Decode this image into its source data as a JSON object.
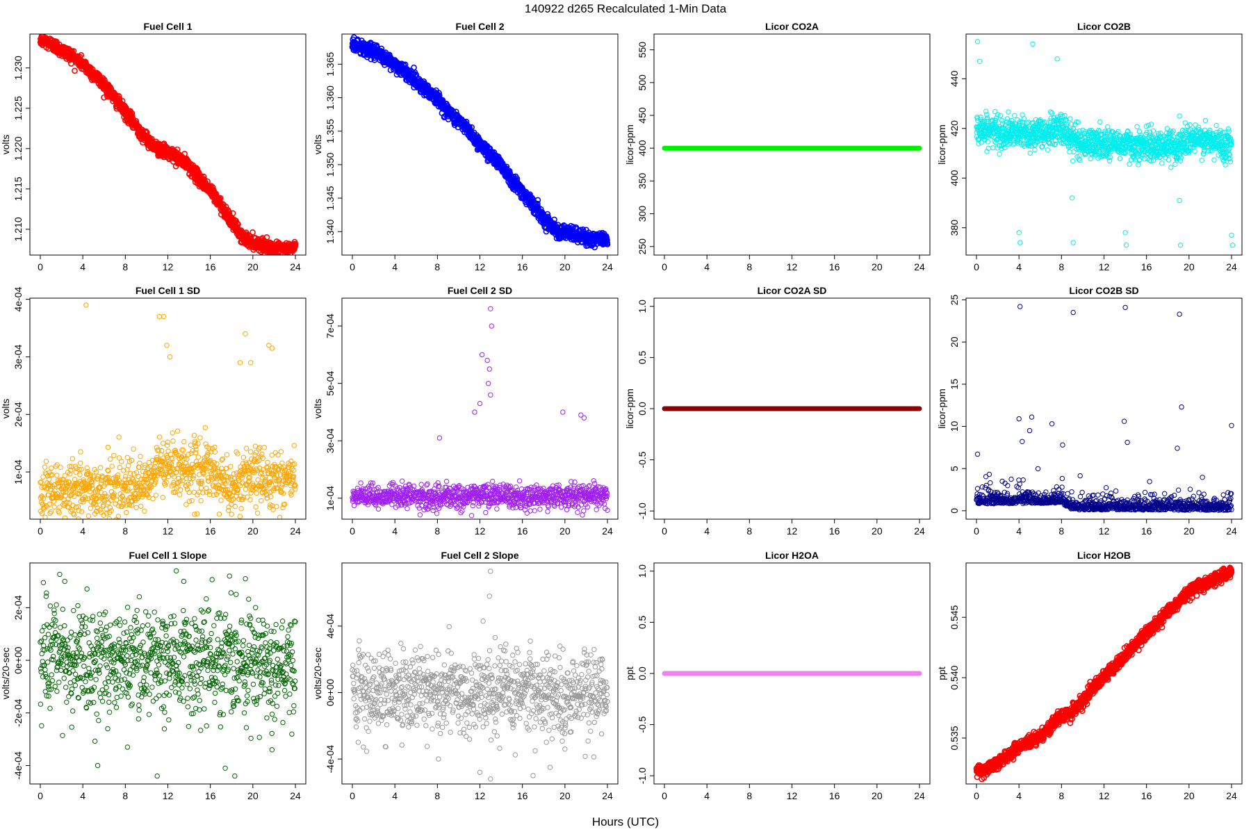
{
  "figure": {
    "super_title": "140922    d265    Recalculated 1-Min Data",
    "x_axis_label": "Hours (UTC)"
  },
  "chart_data": [
    {
      "id": "p1",
      "type": "scatter",
      "title": "Fuel Cell 1",
      "ylabel": "volts",
      "color": "#ff0000",
      "xlim": [
        0,
        24
      ],
      "xticks": [
        0,
        4,
        8,
        12,
        16,
        20,
        24
      ],
      "ylim": [
        1.2068,
        1.2342
      ],
      "yticks": [
        1.21,
        1.215,
        1.22,
        1.225,
        1.23
      ],
      "ytick_labels": [
        "1.210",
        "1.215",
        "1.220",
        "1.225",
        "1.230"
      ],
      "trend_x": [
        0,
        1,
        2,
        3,
        4,
        5,
        6,
        7,
        8,
        9,
        10,
        11,
        12,
        13,
        14,
        15,
        16,
        17,
        18,
        19,
        20,
        21,
        22,
        23,
        24
      ],
      "trend_y": [
        1.2335,
        1.233,
        1.2322,
        1.2315,
        1.2305,
        1.2292,
        1.228,
        1.2262,
        1.2245,
        1.2228,
        1.2212,
        1.22,
        1.2195,
        1.2188,
        1.2178,
        1.2162,
        1.2148,
        1.213,
        1.211,
        1.209,
        1.2084,
        1.208,
        1.2075,
        1.2075,
        1.2078
      ],
      "noise": 0.0004,
      "density": 1440,
      "marker": "thick"
    },
    {
      "id": "p2",
      "type": "scatter",
      "title": "Fuel Cell 2",
      "ylabel": "volts",
      "color": "#0000ff",
      "xlim": [
        0,
        24
      ],
      "xticks": [
        0,
        4,
        8,
        12,
        16,
        20,
        24
      ],
      "ylim": [
        1.3365,
        1.3695
      ],
      "yticks": [
        1.34,
        1.345,
        1.35,
        1.355,
        1.36,
        1.365
      ],
      "ytick_labels": [
        "1.340",
        "1.345",
        "1.350",
        "1.355",
        "1.360",
        "1.365"
      ],
      "trend_x": [
        0,
        1,
        2,
        3,
        4,
        5,
        6,
        7,
        8,
        9,
        10,
        11,
        12,
        13,
        14,
        15,
        16,
        17,
        18,
        19,
        20,
        21,
        22,
        23,
        24
      ],
      "trend_y": [
        1.368,
        1.3675,
        1.3668,
        1.366,
        1.365,
        1.3638,
        1.3625,
        1.3612,
        1.3598,
        1.358,
        1.3565,
        1.355,
        1.353,
        1.3515,
        1.35,
        1.3478,
        1.346,
        1.344,
        1.342,
        1.3405,
        1.3398,
        1.3395,
        1.339,
        1.3388,
        1.339
      ],
      "noise": 0.0005,
      "density": 1440,
      "marker": "thick"
    },
    {
      "id": "p3",
      "type": "scatter",
      "title": "Licor CO2A",
      "ylabel": "licor-ppm",
      "color": "#00ee00",
      "xlim": [
        0,
        24
      ],
      "xticks": [
        0,
        4,
        8,
        12,
        16,
        20,
        24
      ],
      "ylim": [
        237,
        574
      ],
      "yticks": [
        250,
        300,
        350,
        400,
        450,
        500,
        550
      ],
      "ytick_labels": [
        "250",
        "300",
        "350",
        "400",
        "450",
        "500",
        "550"
      ],
      "constant": 400,
      "marker": "line"
    },
    {
      "id": "p4",
      "type": "scatter",
      "title": "Licor CO2B",
      "ylabel": "licor-ppm",
      "color": "#00eeee",
      "xlim": [
        0,
        24
      ],
      "xticks": [
        0,
        4,
        8,
        12,
        16,
        20,
        24
      ],
      "ylim": [
        369,
        458
      ],
      "yticks": [
        380,
        400,
        420,
        440
      ],
      "ytick_labels": [
        "380",
        "400",
        "420",
        "440"
      ],
      "trend_x": [
        0,
        3,
        6,
        8,
        9,
        10,
        13,
        16,
        19,
        20,
        24
      ],
      "trend_y": [
        420,
        418,
        418,
        420,
        416,
        414,
        414,
        413,
        413,
        416,
        413
      ],
      "noise": 3,
      "density": 1440,
      "marker": "ring",
      "outliers": [
        [
          0.1,
          455
        ],
        [
          0.3,
          447
        ],
        [
          4,
          378
        ],
        [
          4.1,
          374
        ],
        [
          5.3,
          454
        ],
        [
          9,
          392
        ],
        [
          9.1,
          374
        ],
        [
          14,
          378
        ],
        [
          14.1,
          373
        ],
        [
          19.1,
          391
        ],
        [
          19.2,
          373
        ],
        [
          24,
          377
        ],
        [
          24.1,
          373
        ],
        [
          7.6,
          448
        ],
        [
          19.2,
          407
        ],
        [
          19.1,
          425
        ]
      ]
    },
    {
      "id": "p5",
      "type": "scatter",
      "title": "Fuel Cell 1 SD",
      "ylabel": "volts",
      "color": "#ffa500",
      "xlim": [
        0,
        24
      ],
      "xticks": [
        0,
        4,
        8,
        12,
        16,
        20,
        24
      ],
      "ylim": [
        1.8e-05,
        0.000402
      ],
      "yticks": [
        0.0001,
        0.0002,
        0.0003,
        0.0004
      ],
      "ytick_labels": [
        "1e-04",
        "2e-04",
        "3e-04",
        "4e-04"
      ],
      "trend_x": [
        0,
        4,
        8,
        10,
        11,
        12,
        16,
        18,
        19,
        20,
        24
      ],
      "trend_y": [
        7e-05,
        7e-05,
        7e-05,
        7e-05,
        0.00011,
        0.00011,
        0.0001,
        7e-05,
        9e-05,
        9e-05,
        9e-05
      ],
      "noise": 2.5e-05,
      "density": 1000,
      "marker": "ring",
      "outliers": [
        [
          4.3,
          0.00039
        ],
        [
          11.2,
          0.00037
        ],
        [
          11.6,
          0.00037
        ],
        [
          11.9,
          0.00032
        ],
        [
          19.3,
          0.00034
        ],
        [
          21.5,
          0.00032
        ],
        [
          21.8,
          0.000315
        ],
        [
          12.2,
          0.0003
        ],
        [
          18.8,
          0.00029
        ],
        [
          19.8,
          0.00029
        ]
      ]
    },
    {
      "id": "p6",
      "type": "scatter",
      "title": "Fuel Cell 2 SD",
      "ylabel": "volts",
      "color": "#a020f0",
      "xlim": [
        0,
        24
      ],
      "xticks": [
        0,
        4,
        8,
        12,
        16,
        20,
        24
      ],
      "ylim": [
        2.7e-05,
        0.000797
      ],
      "yticks": [
        0.0001,
        0.0003,
        0.0005,
        0.0007
      ],
      "ytick_labels": [
        "1e-04",
        "3e-04",
        "5e-04",
        "7e-04"
      ],
      "trend_x": [
        0,
        4,
        8,
        12,
        13,
        16,
        20,
        24
      ],
      "trend_y": [
        0.0001,
        0.00011,
        0.0001,
        0.00011,
        0.00011,
        0.0001,
        0.00011,
        0.00011
      ],
      "noise": 2e-05,
      "density": 1000,
      "marker": "ring",
      "outliers": [
        [
          13,
          0.00076
        ],
        [
          13.1,
          0.0007
        ],
        [
          12.2,
          0.0006
        ],
        [
          12.7,
          0.00058
        ],
        [
          12.9,
          0.00055
        ],
        [
          12.8,
          0.0005
        ],
        [
          13,
          0.00046
        ],
        [
          11.5,
          0.0004
        ],
        [
          12,
          0.00043
        ],
        [
          21.5,
          0.00039
        ],
        [
          21.8,
          0.00038
        ],
        [
          19.8,
          0.0004
        ],
        [
          8.2,
          0.00031
        ]
      ]
    },
    {
      "id": "p7",
      "type": "scatter",
      "title": "Licor CO2A SD",
      "ylabel": "licor-ppm",
      "color": "#8b0000",
      "xlim": [
        0,
        24
      ],
      "xticks": [
        0,
        4,
        8,
        12,
        16,
        20,
        24
      ],
      "ylim": [
        -1.08,
        1.08
      ],
      "yticks": [
        -1.0,
        -0.5,
        0.0,
        0.5,
        1.0
      ],
      "ytick_labels": [
        "-1.0",
        "-0.5",
        "0.0",
        "0.5",
        "1.0"
      ],
      "constant": 0,
      "marker": "line"
    },
    {
      "id": "p8",
      "type": "scatter",
      "title": "Licor CO2B SD",
      "ylabel": "licor-ppm",
      "color": "#00008b",
      "xlim": [
        0,
        24
      ],
      "xticks": [
        0,
        4,
        8,
        12,
        16,
        20,
        24
      ],
      "ylim": [
        -1,
        25.2
      ],
      "yticks": [
        0,
        5,
        10,
        15,
        20,
        25
      ],
      "ytick_labels": [
        "0",
        "5",
        "10",
        "15",
        "20",
        "25"
      ],
      "trend_x": [
        0,
        8,
        9,
        24
      ],
      "trend_y": [
        0.8,
        0.9,
        0.1,
        0.05
      ],
      "noise": 0.5,
      "density": 1000,
      "marker": "ring",
      "nonneg": true,
      "outliers": [
        [
          4.1,
          24.2
        ],
        [
          14,
          24.1
        ],
        [
          9.1,
          23.5
        ],
        [
          19.1,
          23.3
        ],
        [
          19.3,
          12.3
        ],
        [
          4,
          10.9
        ],
        [
          5.2,
          11.1
        ],
        [
          13.9,
          10.6
        ],
        [
          24,
          10.1
        ],
        [
          7.1,
          10.3
        ],
        [
          5,
          9.5
        ],
        [
          4.3,
          8.2
        ],
        [
          14.2,
          8.1
        ],
        [
          18.9,
          7.4
        ],
        [
          0.1,
          6.7
        ],
        [
          8.1,
          7.8
        ]
      ]
    },
    {
      "id": "p9",
      "type": "scatter",
      "title": "Fuel Cell 1 Slope",
      "ylabel": "volts/20-sec",
      "color": "#006400",
      "xlim": [
        0,
        24
      ],
      "xticks": [
        0,
        4,
        8,
        12,
        16,
        20,
        24
      ],
      "ylim": [
        -0.00047,
        0.00037
      ],
      "yticks": [
        -0.0004,
        -0.0002,
        0.0,
        0.0002
      ],
      "ytick_labels": [
        "-4e-04",
        "-2e-04",
        "0e+00",
        "2e-04"
      ],
      "trend_x": [
        0,
        24
      ],
      "trend_y": [
        0.0,
        0.0
      ],
      "noise": 0.0001,
      "density": 1000,
      "marker": "ring",
      "outliers": [
        [
          12.8,
          0.00034
        ],
        [
          17.8,
          0.00032
        ],
        [
          19.3,
          0.00031
        ],
        [
          2.3,
          0.0003
        ],
        [
          13.5,
          0.0003
        ],
        [
          11,
          -0.00044
        ],
        [
          18.3,
          -0.00044
        ],
        [
          5.4,
          -0.0004
        ],
        [
          17.4,
          -0.00041
        ],
        [
          8.2,
          -0.00033
        ],
        [
          21.8,
          -0.00034
        ]
      ]
    },
    {
      "id": "p10",
      "type": "scatter",
      "title": "Fuel Cell 2 Slope",
      "ylabel": "volts/20-sec",
      "color": "#999999",
      "xlim": [
        0,
        24
      ],
      "xticks": [
        0,
        4,
        8,
        12,
        16,
        20,
        24
      ],
      "ylim": [
        -0.00055,
        0.00078
      ],
      "yticks": [
        -0.0004,
        0.0,
        0.0004
      ],
      "ytick_labels": [
        "-4e-04",
        "0e+00",
        "4e-04"
      ],
      "trend_x": [
        0,
        24
      ],
      "trend_y": [
        0.0,
        0.0
      ],
      "noise": 0.00012,
      "density": 1000,
      "marker": "ring",
      "outliers": [
        [
          13,
          0.00073
        ],
        [
          12.9,
          0.00058
        ],
        [
          12.3,
          0.00043
        ],
        [
          13,
          -0.00052
        ],
        [
          12,
          -0.00048
        ],
        [
          17,
          -0.0005
        ],
        [
          18.6,
          -0.00045
        ],
        [
          20,
          -0.00034
        ],
        [
          8.1,
          -0.0004
        ]
      ]
    },
    {
      "id": "p11",
      "type": "scatter",
      "title": "Licor H2OA",
      "ylabel": "ppt",
      "color": "#ee82ee",
      "xlim": [
        0,
        24
      ],
      "xticks": [
        0,
        4,
        8,
        12,
        16,
        20,
        24
      ],
      "ylim": [
        -1.08,
        1.08
      ],
      "yticks": [
        -1.0,
        -0.5,
        0.0,
        0.5,
        1.0
      ],
      "ytick_labels": [
        "-1.0",
        "-0.5",
        "0.0",
        "0.5",
        "1.0"
      ],
      "constant": 0,
      "marker": "line"
    },
    {
      "id": "p12",
      "type": "scatter",
      "title": "Licor H2OB",
      "ylabel": "ppt",
      "color": "#ff0000",
      "xlim": [
        0,
        24
      ],
      "xticks": [
        0,
        4,
        8,
        12,
        16,
        20,
        24
      ],
      "ylim": [
        0.5312,
        0.5495
      ],
      "yticks": [
        0.535,
        0.54,
        0.545
      ],
      "ytick_labels": [
        "0.535",
        "0.540",
        "0.545"
      ],
      "trend_x": [
        0,
        0.5,
        1,
        2,
        3,
        4,
        5,
        6,
        7,
        8,
        9,
        10,
        11,
        12,
        13,
        14,
        15,
        16,
        17,
        18,
        19,
        20,
        21,
        22,
        23,
        24
      ],
      "trend_y": [
        0.5325,
        0.5322,
        0.5325,
        0.533,
        0.5336,
        0.5343,
        0.5347,
        0.5352,
        0.536,
        0.5368,
        0.5372,
        0.538,
        0.5393,
        0.54,
        0.541,
        0.5418,
        0.5428,
        0.5437,
        0.5445,
        0.5455,
        0.5462,
        0.5472,
        0.5476,
        0.548,
        0.5484,
        0.5488
      ],
      "noise": 0.00025,
      "density": 1440,
      "marker": "thick"
    }
  ]
}
